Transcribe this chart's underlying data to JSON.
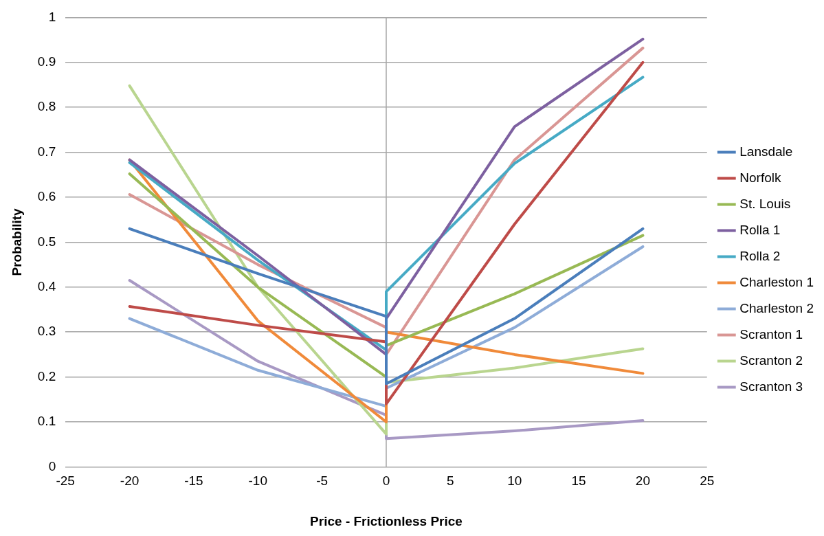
{
  "chart_data": {
    "type": "line",
    "xlabel": "Price - Frictionless Price",
    "ylabel": "Probability",
    "xlim": [
      -25,
      25
    ],
    "xticks": [
      -25,
      -20,
      -15,
      -10,
      -5,
      0,
      5,
      10,
      15,
      20,
      25
    ],
    "ylim": [
      0,
      1
    ],
    "yticks": [
      0,
      0.1,
      0.2,
      0.3,
      0.4,
      0.5,
      0.6,
      0.7,
      0.8,
      0.9,
      1
    ],
    "grid": "y",
    "legend": "right",
    "marker": "none",
    "line_style": "solid",
    "ref_lines": [
      {
        "axis": "x",
        "value": 0,
        "color": "#a6a6a6"
      }
    ],
    "x": [
      -20,
      -10,
      0,
      0,
      10,
      20
    ],
    "series": [
      {
        "name": "Lansdale",
        "color": "#4a7ebb",
        "values": [
          0.53,
          0.43,
          0.335,
          0.185,
          0.33,
          0.53
        ]
      },
      {
        "name": "Norfolk",
        "color": "#be4b48",
        "values": [
          0.357,
          0.315,
          0.278,
          0.14,
          0.54,
          0.9
        ]
      },
      {
        "name": "St. Louis",
        "color": "#98b954",
        "values": [
          0.652,
          0.4,
          0.2,
          0.27,
          0.385,
          0.515
        ]
      },
      {
        "name": "Rolla 1",
        "color": "#7d60a0",
        "values": [
          0.683,
          0.47,
          0.25,
          0.33,
          0.757,
          0.952
        ]
      },
      {
        "name": "Rolla 2",
        "color": "#46aac5",
        "values": [
          0.677,
          0.46,
          0.26,
          0.39,
          0.675,
          0.867
        ]
      },
      {
        "name": "Charleston 1",
        "color": "#f08a3a",
        "values": [
          0.683,
          0.325,
          0.1,
          0.3,
          0.25,
          0.208
        ]
      },
      {
        "name": "Charleston 2",
        "color": "#8eacd8",
        "values": [
          0.33,
          0.215,
          0.135,
          0.175,
          0.31,
          0.49
        ]
      },
      {
        "name": "Scranton 1",
        "color": "#d99694",
        "values": [
          0.606,
          0.45,
          0.31,
          0.25,
          0.683,
          0.932
        ]
      },
      {
        "name": "Scranton 2",
        "color": "#b9d58f",
        "values": [
          0.848,
          0.4,
          0.073,
          0.188,
          0.22,
          0.263
        ]
      },
      {
        "name": "Scranton 3",
        "color": "#a899c4",
        "values": [
          0.415,
          0.235,
          0.115,
          0.063,
          0.08,
          0.103
        ]
      }
    ]
  }
}
